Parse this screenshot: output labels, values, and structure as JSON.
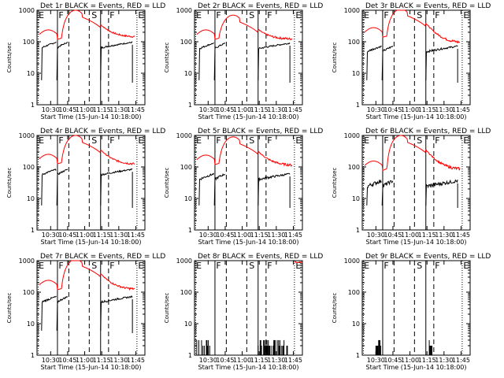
{
  "panels": [
    {
      "title": "Det 1r BLACK = Events, RED = LLD",
      "ylabel": "Counts/sec",
      "xlabel": "Start Time (15-Jun-14 10:18:00)",
      "black_mode": "normal",
      "black_base": 80,
      "red_base": 170,
      "red_max": 1000,
      "red_end": 140
    },
    {
      "title": "Det 2r BLACK = Events, RED = LLD",
      "ylabel": "Counts/sec",
      "xlabel": "Start Time (15-Jun-14 10:18:00)",
      "black_mode": "normal",
      "black_base": 75,
      "red_base": 170,
      "red_max": 700,
      "red_end": 120
    },
    {
      "title": "Det 3r BLACK = Events, RED = LLD",
      "ylabel": "Counts/sec",
      "xlabel": "Start Time (15-Jun-14 10:18:00)",
      "black_mode": "normal",
      "black_base": 60,
      "red_base": 200,
      "red_max": 1100,
      "red_end": 90
    },
    {
      "title": "Det 4r BLACK = Events, RED = LLD",
      "ylabel": "Counts/sec",
      "xlabel": "Start Time (15-Jun-14 10:18:00)",
      "black_mode": "normal",
      "black_base": 70,
      "red_base": 180,
      "red_max": 1000,
      "red_end": 120
    },
    {
      "title": "Det 5r BLACK = Events, RED = LLD",
      "ylabel": "Counts/sec",
      "xlabel": "Start Time (15-Jun-14 10:18:00)",
      "black_mode": "normal",
      "black_base": 50,
      "red_base": 170,
      "red_max": 900,
      "red_end": 110
    },
    {
      "title": "Det 6r BLACK = Events, RED = LLD",
      "ylabel": "Counts/sec",
      "xlabel": "Start Time (15-Jun-14 10:18:00)",
      "black_mode": "normal",
      "black_base": 30,
      "red_base": 110,
      "red_max": 1000,
      "red_end": 80
    },
    {
      "title": "Det 7r BLACK = Events, RED = LLD",
      "ylabel": "Counts/sec",
      "xlabel": "Start Time (15-Jun-14 10:18:00)",
      "black_mode": "normal",
      "black_base": 60,
      "red_base": 170,
      "red_max": 1100,
      "red_end": 120
    },
    {
      "title": "Det 8r BLACK = Events, RED = LLD",
      "ylabel": "Counts/sec",
      "xlabel": "Start Time (15-Jun-14 10:18:00)",
      "black_mode": "sparse",
      "black_base": 2,
      "red_base": 0,
      "red_max": 0,
      "red_end": 0
    },
    {
      "title": "Det 9r BLACK = Events, RED = LLD",
      "ylabel": "Counts/sec",
      "xlabel": "Start Time (15-Jun-14 10:18:00)",
      "black_mode": "sparse9",
      "black_base": 2,
      "red_base": 0,
      "red_max": 0,
      "red_end": 0
    }
  ],
  "x_ticks": [
    "10:30",
    "10:45",
    "11:00",
    "11:15",
    "11:30",
    "11:45"
  ],
  "y_ticks": [
    "1",
    "10",
    "100",
    "1000"
  ],
  "region_labels": [
    "E",
    "F",
    "S",
    "F",
    "E"
  ],
  "colors": {
    "events": "#000000",
    "lld": "#ff0000"
  },
  "chart_data": {
    "type": "line",
    "x_range_minutes_after_10_18": [
      0,
      95
    ],
    "y_scale": "log",
    "ylim": [
      1,
      1000
    ],
    "boundaries_minutes_after_10_18": {
      "dotted": [
        1,
        88
      ],
      "solid": [
        18,
        56
      ],
      "dashed": [
        28,
        46,
        63
      ]
    }
  }
}
